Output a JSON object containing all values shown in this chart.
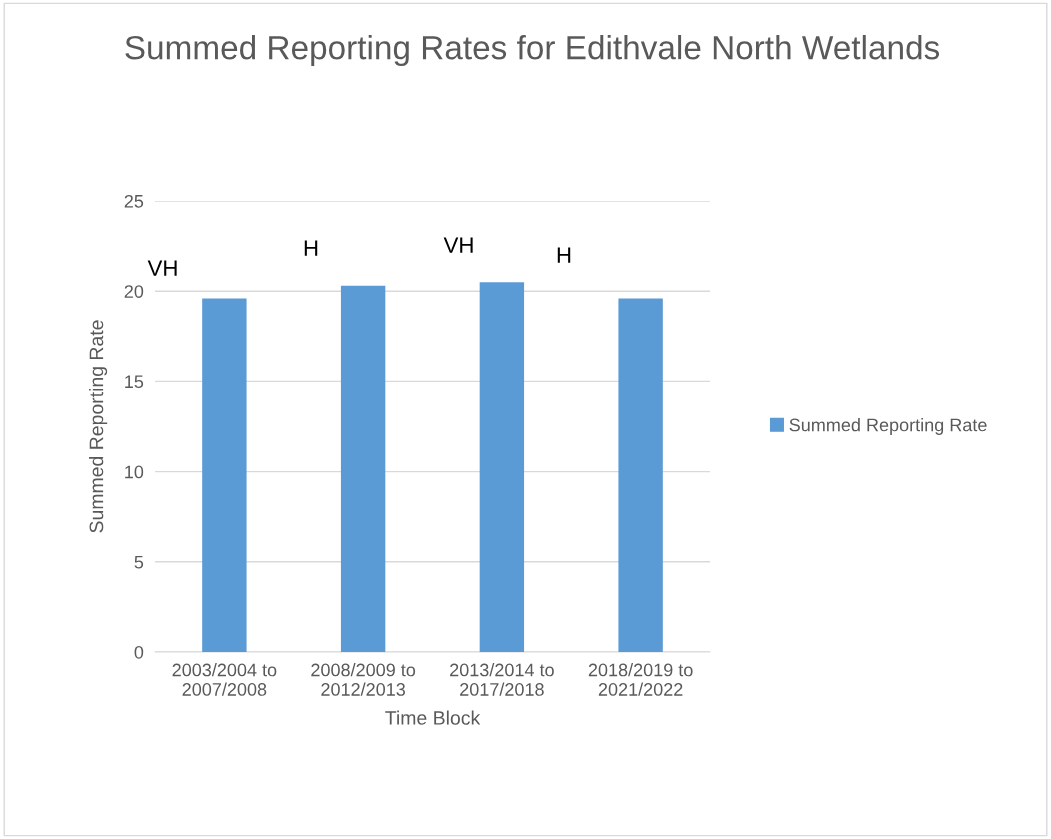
{
  "chart_data": {
    "type": "bar",
    "title": "Summed Reporting Rates for Edithvale North Wetlands",
    "xlabel": "Time Block",
    "ylabel": "Summed Reporting Rate",
    "categories": [
      "2003/2004 to\n2007/2008",
      "2008/2009 to\n2012/2013",
      "2013/2014 to\n2017/2018",
      "2018/2019 to\n2021/2022"
    ],
    "series": [
      {
        "name": "Summed Reporting Rate",
        "color": "#5b9bd5",
        "values": [
          19.6,
          20.3,
          20.5,
          19.6
        ]
      }
    ],
    "ylim": [
      0,
      25
    ],
    "yticks": [
      0,
      5,
      10,
      15,
      20,
      25
    ],
    "grid": "y",
    "legend": "right",
    "annotations": [
      "VH",
      "H",
      "VH",
      "H"
    ]
  }
}
